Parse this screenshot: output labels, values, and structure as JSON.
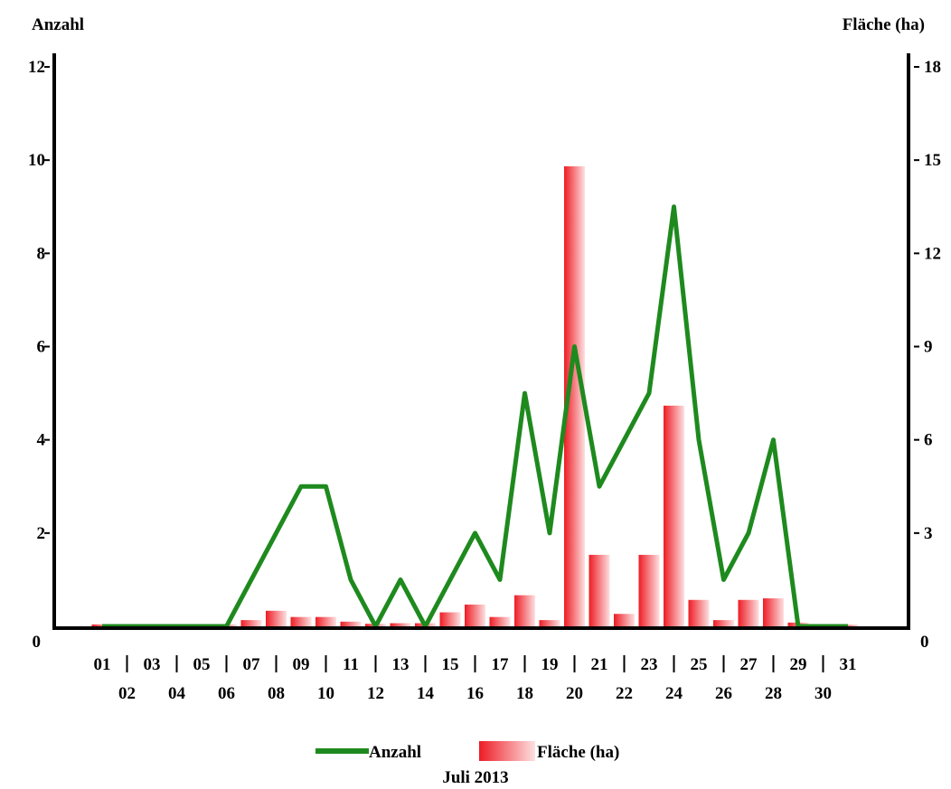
{
  "chart_data": {
    "type": "bar+line",
    "title": "",
    "xlabel": "Juli 2013",
    "ylabel_left": "Anzahl",
    "ylabel_right": "Fläche (ha)",
    "categories": [
      "01",
      "02",
      "03",
      "04",
      "05",
      "06",
      "07",
      "08",
      "09",
      "10",
      "11",
      "12",
      "13",
      "14",
      "15",
      "16",
      "17",
      "18",
      "19",
      "20",
      "21",
      "22",
      "23",
      "24",
      "25",
      "26",
      "27",
      "28",
      "29",
      "30",
      "31"
    ],
    "left_ticks": [
      "0",
      "2",
      "4",
      "6",
      "8",
      "10",
      "12"
    ],
    "right_ticks": [
      "0",
      "3",
      "6",
      "9",
      "12",
      "15",
      "18"
    ],
    "ylim_left": [
      0,
      12
    ],
    "ylim_right": [
      0,
      18
    ],
    "series": [
      {
        "name": "Anzahl",
        "type": "line",
        "axis": "left",
        "color": "#1e8a1e",
        "values": [
          0,
          0,
          0,
          0,
          0,
          0,
          1,
          2,
          3,
          3,
          1,
          0,
          1,
          0,
          1,
          2,
          1,
          5,
          2,
          6,
          3,
          4,
          5,
          9,
          4,
          1,
          2,
          4,
          0,
          0,
          0
        ]
      },
      {
        "name": "Fläche (ha)",
        "type": "bar",
        "axis": "right",
        "color": "#ee1c24",
        "values": [
          0.06,
          0.0,
          0.0,
          0.0,
          0.0,
          0.06,
          0.2,
          0.5,
          0.3,
          0.3,
          0.15,
          0.08,
          0.1,
          0.1,
          0.45,
          0.7,
          0.3,
          1.0,
          0.2,
          14.8,
          2.3,
          0.4,
          2.3,
          7.1,
          0.85,
          0.2,
          0.85,
          0.9,
          0.12,
          0.0,
          0.05
        ]
      }
    ],
    "legend_position": "bottom",
    "grid": false
  }
}
